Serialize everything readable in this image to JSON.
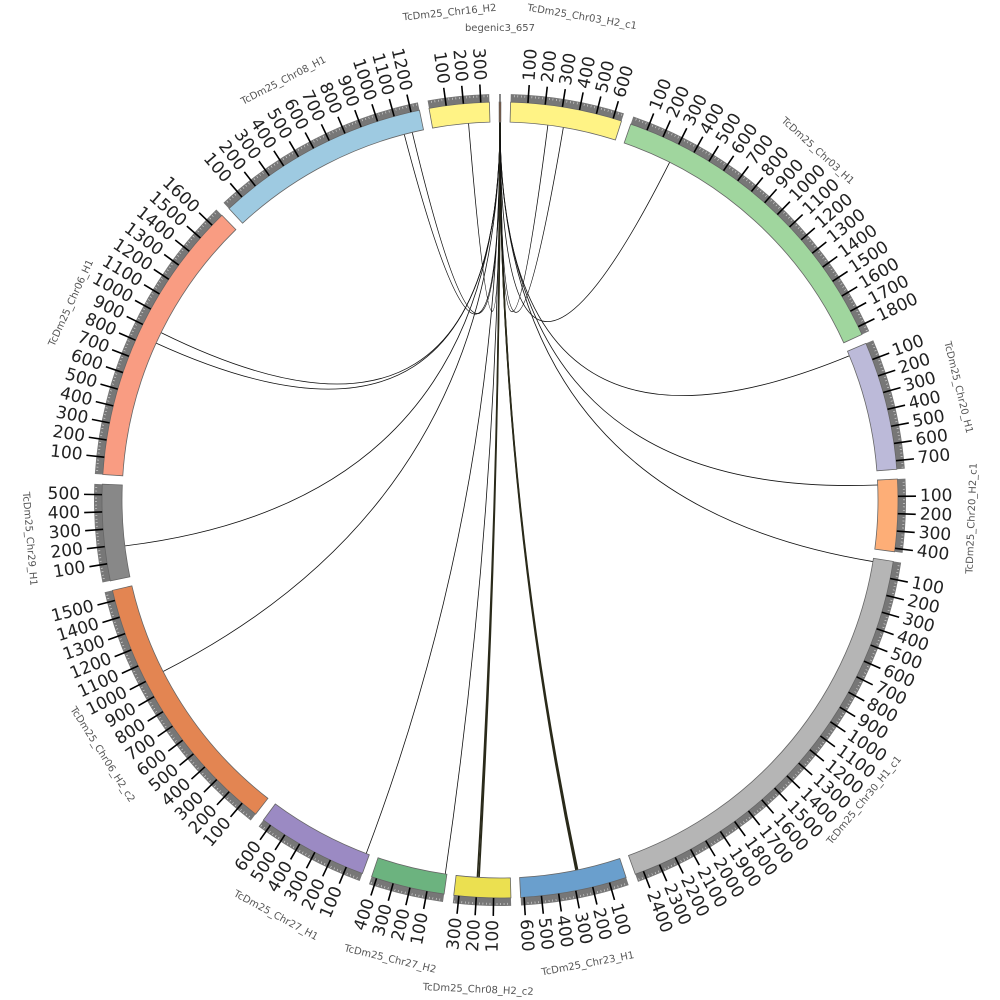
{
  "chart_data": {
    "type": "circos",
    "tick_interval": 100,
    "segments": [
      {
        "name": "begenic3_657",
        "length": 10,
        "color": "#7a4a2a"
      },
      {
        "name": "TcDm25_Chr03_H2_c1",
        "length": 650,
        "color": "#fff385"
      },
      {
        "name": "TcDm25_Chr03_H1",
        "length": 1850,
        "color": "#a0d69e"
      },
      {
        "name": "TcDm25_Chr20_H1",
        "length": 750,
        "color": "#bcbad9"
      },
      {
        "name": "TcDm25_Chr20_H2_c1",
        "length": 420,
        "color": "#fdae77"
      },
      {
        "name": "TcDm25_Chr30_H1_c1",
        "length": 2450,
        "color": "#b5b5b5"
      },
      {
        "name": "TcDm25_Chr23_H1",
        "length": 620,
        "color": "#6a9fcd"
      },
      {
        "name": "TcDm25_Chr08_H2_c2",
        "length": 330,
        "color": "#ebe050"
      },
      {
        "name": "TcDm25_Chr27_H2",
        "length": 430,
        "color": "#6cb37f"
      },
      {
        "name": "TcDm25_Chr27_H1",
        "length": 650,
        "color": "#9b8ac3"
      },
      {
        "name": "TcDm25_Chr06_H2_c2",
        "length": 1560,
        "color": "#e38552"
      },
      {
        "name": "TcDm25_Chr29_H1",
        "length": 560,
        "color": "#888888"
      },
      {
        "name": "TcDm25_Chr06_H1",
        "length": 1680,
        "color": "#f99c82"
      },
      {
        "name": "TcDm25_Chr08_H1",
        "length": 1250,
        "color": "#9ecae1"
      },
      {
        "name": "TcDm25_Chr16_H2",
        "length": 350,
        "color": "#fff385"
      }
    ],
    "links": [
      {
        "from": "begenic3_657",
        "from_pos": 5,
        "to": "TcDm25_Chr16_H2",
        "to_pos": 220
      },
      {
        "from": "begenic3_657",
        "from_pos": 5,
        "to": "TcDm25_Chr08_H1",
        "to_pos": 1130
      },
      {
        "from": "begenic3_657",
        "from_pos": 5,
        "to": "TcDm25_Chr08_H1",
        "to_pos": 1180
      },
      {
        "from": "begenic3_657",
        "from_pos": 5,
        "to": "TcDm25_Chr06_H1",
        "to_pos": 904
      },
      {
        "from": "begenic3_657",
        "from_pos": 5,
        "to": "TcDm25_Chr06_H1",
        "to_pos": 834
      },
      {
        "from": "begenic3_657",
        "from_pos": 5,
        "to": "TcDm25_Chr29_H1",
        "to_pos": 190
      },
      {
        "from": "begenic3_657",
        "from_pos": 5,
        "to": "TcDm25_Chr06_H2_c2",
        "to_pos": 1006
      },
      {
        "from": "begenic3_657",
        "from_pos": 5,
        "to": "TcDm25_Chr27_H1",
        "to_pos": 20
      },
      {
        "from": "begenic3_657",
        "from_pos": 5,
        "to": "TcDm25_Chr27_H2",
        "to_pos": 10
      },
      {
        "from": "begenic3_657",
        "from_pos": 5,
        "to": "TcDm25_Chr08_H2_c2",
        "to_pos": 190
      },
      {
        "from": "begenic3_657",
        "from_pos": 5,
        "to": "TcDm25_Chr08_H2_c2",
        "to_pos": 200
      },
      {
        "from": "begenic3_657",
        "from_pos": 5,
        "to": "TcDm25_Chr23_H1",
        "to_pos": 265
      },
      {
        "from": "begenic3_657",
        "from_pos": 5,
        "to": "TcDm25_Chr23_H1",
        "to_pos": 270
      },
      {
        "from": "begenic3_657",
        "from_pos": 5,
        "to": "TcDm25_Chr23_H1",
        "to_pos": 275
      },
      {
        "from": "begenic3_657",
        "from_pos": 5,
        "to": "TcDm25_Chr30_H1_c1",
        "to_pos": 20
      },
      {
        "from": "begenic3_657",
        "from_pos": 5,
        "to": "TcDm25_Chr20_H2_c1",
        "to_pos": 30
      },
      {
        "from": "begenic3_657",
        "from_pos": 5,
        "to": "TcDm25_Chr20_H1",
        "to_pos": 30
      },
      {
        "from": "begenic3_657",
        "from_pos": 5,
        "to": "TcDm25_Chr03_H1",
        "to_pos": 300
      },
      {
        "from": "begenic3_657",
        "from_pos": 5,
        "to": "TcDm25_Chr03_H2_c1",
        "to_pos": 230
      },
      {
        "from": "begenic3_657",
        "from_pos": 5,
        "to": "TcDm25_Chr03_H2_c1",
        "to_pos": 325
      }
    ]
  }
}
